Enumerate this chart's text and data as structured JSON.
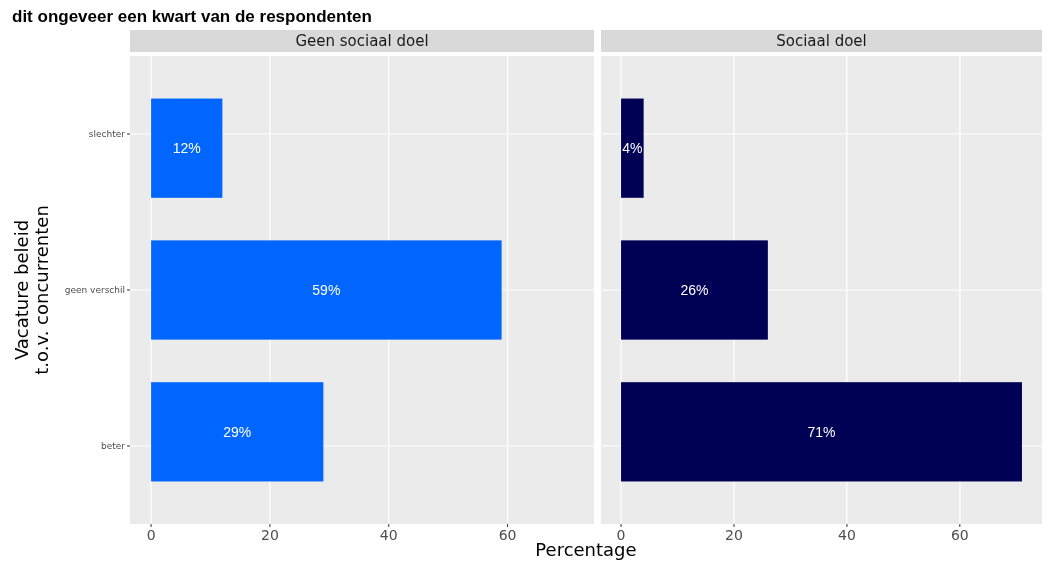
{
  "chart_data": [
    {
      "type": "bar",
      "orientation": "horizontal",
      "title": "Geen sociaal doel",
      "ylabel": "Vacature beleid\nt.o.v. concurrenten",
      "xlabel": "Percentage",
      "annotations": [
        "dit ongeveer een kwart van de respondenten"
      ],
      "categories": [
        "slechter",
        "geen verschil",
        "beter"
      ],
      "values": [
        12,
        59,
        29
      ],
      "color": "#0066ff",
      "value_labels": [
        "12%",
        "59%",
        "29%"
      ],
      "xlim": [
        -3.55,
        74.55
      ],
      "xticks": [
        0,
        20,
        40,
        60
      ],
      "grid": true
    },
    {
      "type": "bar",
      "orientation": "horizontal",
      "title": "Sociaal doel",
      "categories": [
        null,
        null,
        null
      ],
      "values": [
        4,
        26,
        71
      ],
      "color": "#000055",
      "value_labels": [
        "4%",
        "26%",
        "71%"
      ],
      "xlim": [
        -3.55,
        74.55
      ],
      "xticks": [
        0,
        20,
        40,
        60
      ],
      "grid": true,
      "tick_labels": "x"
    }
  ]
}
